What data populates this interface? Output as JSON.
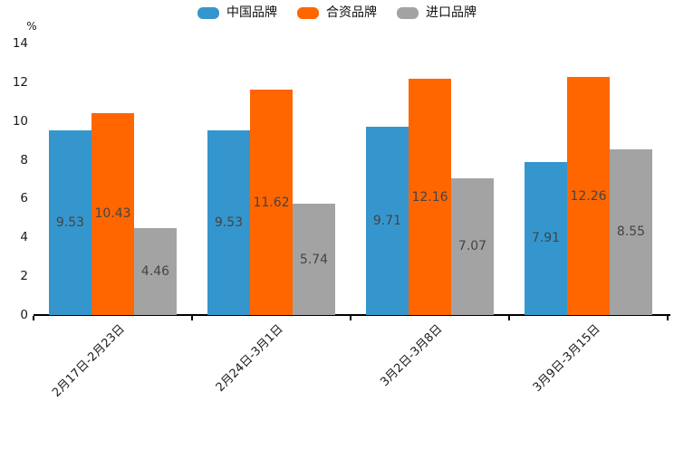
{
  "chart_data": {
    "type": "bar",
    "title": "",
    "unit_label": "%",
    "categories": [
      "2月17日-2月23日",
      "2月24日-3月1日",
      "3月2日-3月8日",
      "3月9日-3月15日"
    ],
    "series": [
      {
        "name": "中国品牌",
        "color": "#3596CE",
        "values": [
          9.53,
          9.53,
          9.71,
          7.91
        ]
      },
      {
        "name": "合资品牌",
        "color": "#FF6600",
        "values": [
          10.43,
          11.62,
          12.16,
          12.26
        ]
      },
      {
        "name": "进口品牌",
        "color": "#A3A3A3",
        "values": [
          4.46,
          5.74,
          7.07,
          8.55
        ]
      }
    ],
    "yticks": [
      0,
      2,
      4,
      6,
      8,
      10,
      12,
      14
    ],
    "ylim": [
      0,
      14
    ],
    "grid": false,
    "legend_position": "top-center",
    "value_labels": "centered-inside-bars",
    "x_label_rotation_deg": 45,
    "value_label_decimals": 2
  },
  "colors": {
    "background": "#FFFFFF",
    "axis": "#000000",
    "tick_text": "#1A1A1A",
    "value_label_text": "#444444"
  }
}
